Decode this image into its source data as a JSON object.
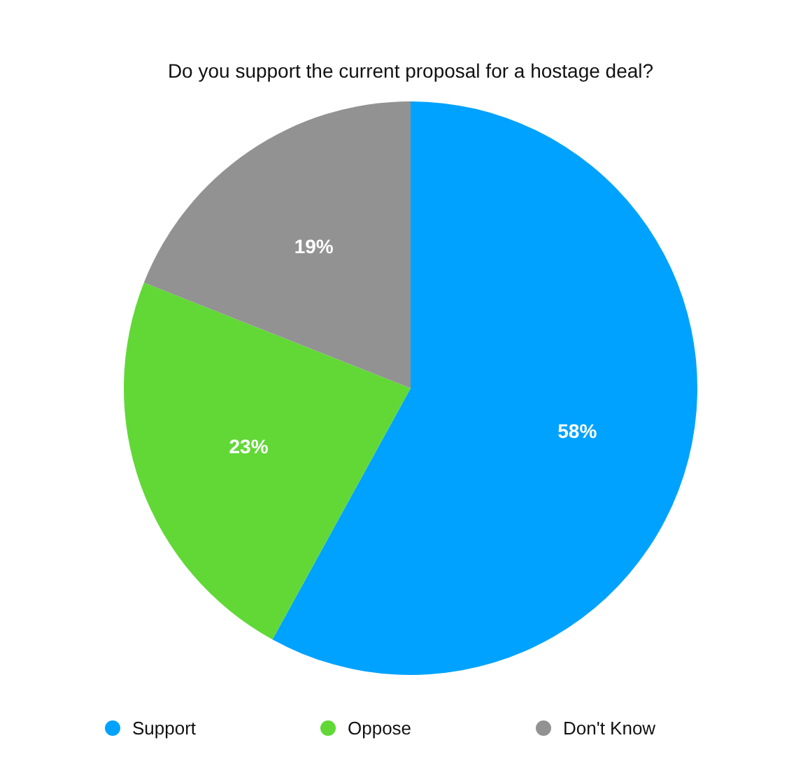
{
  "chart_data": {
    "type": "pie",
    "title": "Do you support the current proposal for a hostage deal?",
    "categories": [
      "Support",
      "Oppose",
      "Don't Know"
    ],
    "values": [
      58,
      23,
      19
    ],
    "colors": [
      "#00a2ff",
      "#61d836",
      "#929292"
    ],
    "value_labels": [
      "58%",
      "23%",
      "19%"
    ],
    "legend": "bottom"
  }
}
